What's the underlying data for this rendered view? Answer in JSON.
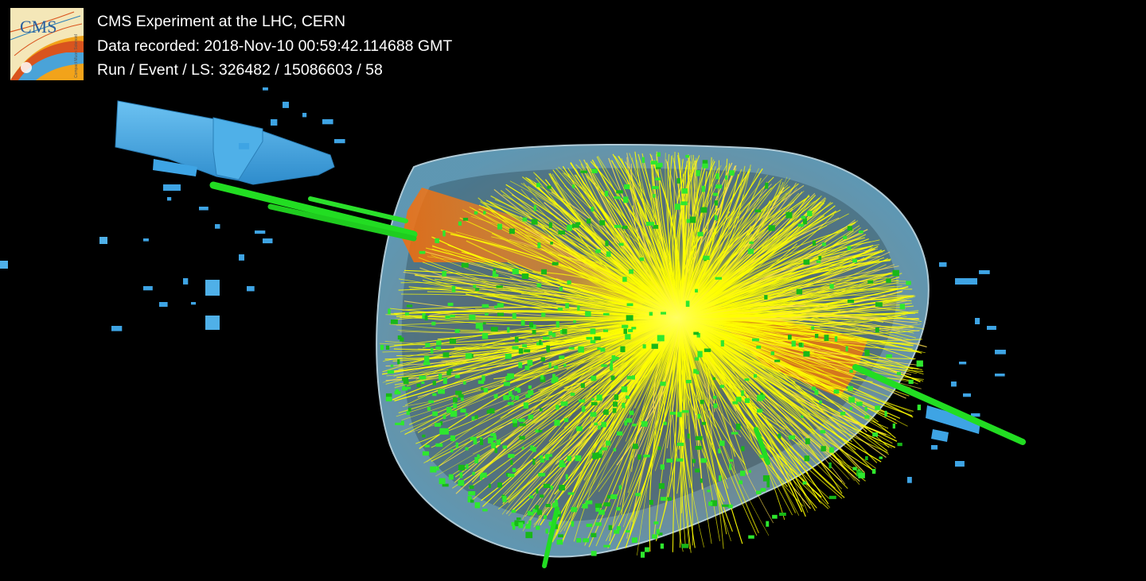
{
  "event_display": {
    "title": "CMS Experiment at the LHC, CERN",
    "data_recorded_label": "Data recorded:",
    "data_recorded_value": "2018-Nov-10 00:59:42.114688 GMT",
    "run_event_ls_label": "Run / Event / LS:",
    "run_event_ls_value": "326482 / 15086603 / 58",
    "logo": {
      "lettering": "CMS",
      "small_print": "Compact Muon Solenoid"
    }
  },
  "colors": {
    "background": "#000000",
    "tracks": "#ffff00",
    "hcal_towers": "#ff7b00",
    "ecal_hits": "#22dd22",
    "muon_chambers": "#3aa6e6",
    "tracker_volume": "#b8e4f5",
    "muon_tracks": "#22dd22"
  }
}
